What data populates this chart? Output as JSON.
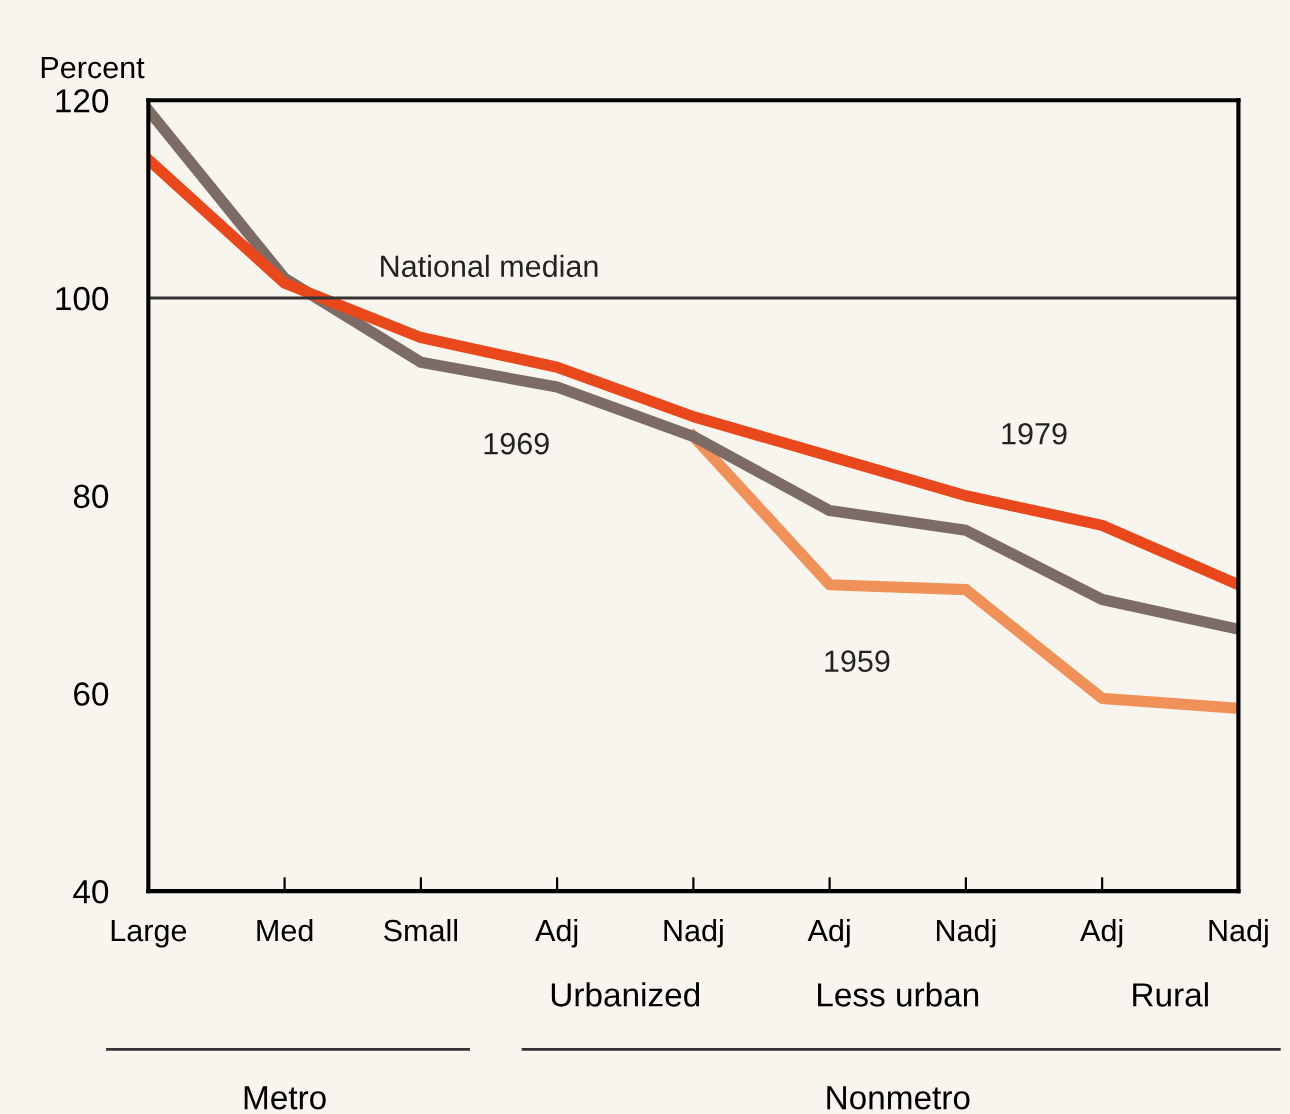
{
  "chart_data": {
    "type": "line",
    "ylabel": "Percent",
    "categories": [
      "Large",
      "Med",
      "Small",
      "Adj",
      "Nadj",
      "Adj",
      "Nadj",
      "Adj",
      "Nadj"
    ],
    "series": [
      {
        "name": "1959",
        "color": "#f0915a",
        "values": [
          null,
          null,
          null,
          null,
          86,
          71,
          70.5,
          59.5,
          58.5
        ]
      },
      {
        "name": "1969",
        "color": "#7d6b65",
        "values": [
          119,
          102,
          93.5,
          91,
          86,
          78.5,
          76.5,
          69.5,
          66.5
        ]
      },
      {
        "name": "1979",
        "color": "#e8481c",
        "values": [
          114,
          101.5,
          96,
          93,
          88,
          84,
          80,
          77,
          71
        ]
      }
    ],
    "ylim": [
      40,
      120
    ],
    "yticks": [
      40,
      60,
      80,
      100,
      120
    ],
    "ref_lines": [
      {
        "axis": "y",
        "value": 100,
        "label": "National median",
        "color": "#333333"
      }
    ],
    "annotations": [
      "Urbanized",
      "Less urban",
      "Rural",
      "Metro",
      "Nonmetro"
    ],
    "grid": false,
    "legend": false,
    "marker": "none",
    "line_style": "solid"
  }
}
